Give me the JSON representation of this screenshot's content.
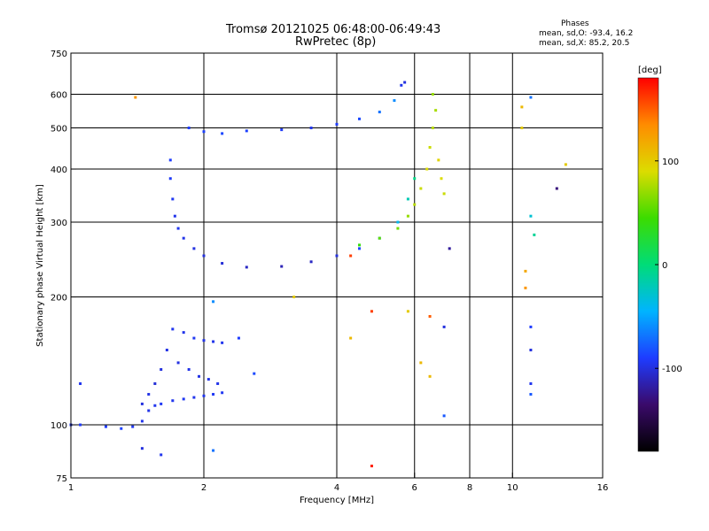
{
  "header": {
    "title_line1": "Tromsø 20121025 06:48:00-06:49:43",
    "title_line2": "RwPretec (8p)",
    "stats_heading": "Phases",
    "stats_o": "mean, sd,O: -93.4, 16.2",
    "stats_x": "mean, sd,X: 85.2, 20.5"
  },
  "chart_data": {
    "type": "scatter",
    "title": "Tromsø 20121025 06:48:00-06:49:43",
    "subtitle": "RwPretec (8p)",
    "xlabel": "Frequency [MHz]",
    "ylabel": "Stationary phase Virtual Height [km]",
    "xscale": "log",
    "yscale": "log",
    "xlim": [
      1,
      16
    ],
    "ylim": [
      75,
      750
    ],
    "xticks": [
      1,
      2,
      4,
      6,
      8,
      10,
      16
    ],
    "yticks": [
      75,
      100,
      200,
      300,
      400,
      500,
      600,
      750
    ],
    "grid": true,
    "colorbar": {
      "label": "[deg]",
      "range": [
        -180,
        180
      ],
      "ticks": [
        -100,
        0,
        100
      ],
      "colors": [
        "#000000",
        "#3a0a6a",
        "#1e3cff",
        "#00b4ff",
        "#00dc78",
        "#3cdc00",
        "#dcdc00",
        "#ff8c00",
        "#ff0000"
      ]
    },
    "series": [
      {
        "trace": "E-layer lower",
        "points": [
          [
            1.0,
            100,
            -95
          ],
          [
            1.05,
            100,
            -92
          ],
          [
            1.2,
            99,
            -90
          ],
          [
            1.3,
            98,
            -88
          ],
          [
            1.38,
            99,
            -94
          ],
          [
            1.45,
            102,
            -96
          ],
          [
            1.5,
            108,
            -97
          ],
          [
            1.55,
            111,
            -95
          ],
          [
            1.6,
            112,
            -93
          ],
          [
            1.7,
            114,
            -95
          ],
          [
            1.8,
            115,
            -94
          ],
          [
            1.9,
            116,
            -96
          ],
          [
            2.0,
            117,
            -95
          ],
          [
            2.1,
            118,
            -93
          ],
          [
            2.2,
            119,
            -94
          ]
        ]
      },
      {
        "trace": "E-layer upper",
        "points": [
          [
            1.45,
            112,
            -100
          ],
          [
            1.5,
            118,
            -98
          ],
          [
            1.55,
            125,
            -102
          ],
          [
            1.6,
            135,
            -100
          ],
          [
            1.65,
            150,
            -98
          ],
          [
            1.7,
            168,
            -95
          ],
          [
            1.8,
            165,
            -96
          ],
          [
            1.9,
            160,
            -94
          ],
          [
            2.0,
            158,
            -97
          ],
          [
            2.1,
            157,
            -96
          ],
          [
            2.2,
            156,
            -95
          ],
          [
            1.75,
            140,
            -99
          ],
          [
            1.85,
            135,
            -97
          ],
          [
            1.95,
            130,
            -98
          ],
          [
            2.05,
            128,
            -96
          ],
          [
            2.15,
            125,
            -97
          ],
          [
            2.4,
            160,
            -90
          ],
          [
            2.6,
            132,
            -85
          ]
        ]
      },
      {
        "trace": "F-layer O-mode lower",
        "points": [
          [
            1.68,
            420,
            -90
          ],
          [
            1.68,
            380,
            -92
          ],
          [
            1.7,
            340,
            -94
          ],
          [
            1.72,
            310,
            -96
          ],
          [
            1.75,
            290,
            -95
          ],
          [
            1.8,
            275,
            -97
          ],
          [
            1.9,
            260,
            -99
          ],
          [
            2.0,
            250,
            -100
          ],
          [
            2.2,
            240,
            -102
          ],
          [
            2.5,
            235,
            -108
          ],
          [
            3.0,
            236,
            -112
          ],
          [
            3.5,
            242,
            -108
          ],
          [
            4.0,
            250,
            -100
          ],
          [
            4.5,
            260,
            -85
          ],
          [
            5.0,
            275,
            -60
          ],
          [
            5.5,
            300,
            -40
          ],
          [
            5.8,
            340,
            -20
          ],
          [
            6.0,
            380,
            -5
          ]
        ]
      },
      {
        "trace": "F-layer O-mode upper",
        "points": [
          [
            1.85,
            500,
            -90
          ],
          [
            2.0,
            490,
            -88
          ],
          [
            2.2,
            485,
            -86
          ],
          [
            2.5,
            492,
            -88
          ],
          [
            3.0,
            495,
            -92
          ],
          [
            3.5,
            500,
            -95
          ],
          [
            4.0,
            510,
            -90
          ],
          [
            4.5,
            525,
            -85
          ],
          [
            5.0,
            545,
            -70
          ],
          [
            5.4,
            580,
            -60
          ],
          [
            5.6,
            630,
            -95
          ],
          [
            5.7,
            640,
            -100
          ]
        ]
      },
      {
        "trace": "F-layer X-mode",
        "points": [
          [
            4.5,
            265,
            40
          ],
          [
            5.0,
            275,
            55
          ],
          [
            5.5,
            290,
            60
          ],
          [
            5.8,
            310,
            70
          ],
          [
            6.0,
            330,
            80
          ],
          [
            6.2,
            360,
            85
          ],
          [
            6.4,
            400,
            90
          ],
          [
            6.5,
            450,
            85
          ],
          [
            6.6,
            500,
            80
          ],
          [
            6.7,
            550,
            75
          ],
          [
            6.6,
            600,
            70
          ],
          [
            6.8,
            420,
            95
          ],
          [
            6.9,
            380,
            90
          ],
          [
            7.0,
            350,
            85
          ]
        ]
      },
      {
        "trace": "scattered",
        "points": [
          [
            1.05,
            125,
            -95
          ],
          [
            1.4,
            590,
            130
          ],
          [
            1.45,
            88,
            -100
          ],
          [
            1.6,
            85,
            -95
          ],
          [
            2.1,
            87,
            -70
          ],
          [
            2.1,
            195,
            -60
          ],
          [
            3.2,
            200,
            100
          ],
          [
            4.3,
            160,
            110
          ],
          [
            4.3,
            250,
            160
          ],
          [
            4.8,
            80,
            170
          ],
          [
            4.8,
            185,
            160
          ],
          [
            5.8,
            185,
            100
          ],
          [
            6.2,
            140,
            110
          ],
          [
            6.5,
            180,
            150
          ],
          [
            6.5,
            130,
            110
          ],
          [
            7.0,
            105,
            -80
          ],
          [
            7.0,
            170,
            -100
          ],
          [
            7.2,
            260,
            -120
          ],
          [
            10.5,
            560,
            110
          ],
          [
            10.5,
            500,
            100
          ],
          [
            10.7,
            230,
            120
          ],
          [
            10.7,
            210,
            130
          ],
          [
            11.0,
            590,
            -70
          ],
          [
            11.0,
            310,
            -30
          ],
          [
            11.0,
            170,
            -90
          ],
          [
            11.0,
            150,
            -100
          ],
          [
            11.0,
            125,
            -95
          ],
          [
            11.0,
            118,
            -80
          ],
          [
            11.2,
            280,
            -10
          ],
          [
            12.6,
            360,
            -130
          ],
          [
            13.2,
            410,
            100
          ]
        ]
      }
    ]
  }
}
